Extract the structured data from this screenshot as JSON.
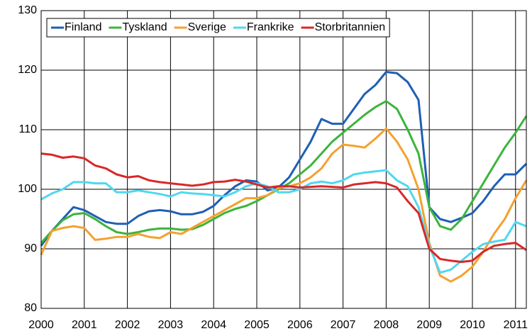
{
  "chart_data": {
    "type": "line",
    "x": [
      2000,
      2000.25,
      2000.5,
      2000.75,
      2001,
      2001.25,
      2001.5,
      2001.75,
      2002,
      2002.25,
      2002.5,
      2002.75,
      2003,
      2003.25,
      2003.5,
      2003.75,
      2004,
      2004.25,
      2004.5,
      2004.75,
      2005,
      2005.25,
      2005.5,
      2005.75,
      2006,
      2006.25,
      2006.5,
      2006.75,
      2007,
      2007.25,
      2007.5,
      2007.75,
      2008,
      2008.25,
      2008.5,
      2008.75,
      2009,
      2009.25,
      2009.5,
      2009.75,
      2010,
      2010.25,
      2010.5,
      2010.75,
      2011,
      2011.25
    ],
    "series": [
      {
        "name": "Finland",
        "color": "#1f5fb4",
        "values": [
          90.5,
          93,
          95,
          97,
          96.5,
          95.5,
          94.5,
          94.2,
          94.2,
          95.5,
          96.3,
          96.5,
          96.3,
          95.8,
          95.8,
          96.2,
          97.2,
          99,
          100.5,
          101.5,
          101.3,
          99.8,
          100.3,
          102,
          105,
          108,
          111.8,
          111,
          111,
          113.5,
          116,
          117.5,
          119.7,
          119.5,
          118,
          115,
          97,
          95,
          94.5,
          95.2,
          96,
          98,
          100.5,
          102.5,
          102.5,
          104.3
        ]
      },
      {
        "name": "Tyskland",
        "color": "#3cb43c",
        "values": [
          91,
          93,
          94.8,
          95.8,
          96,
          95,
          93.8,
          92.8,
          92.5,
          92.8,
          93.2,
          93.4,
          93.4,
          93.2,
          93.3,
          94,
          95,
          96,
          96.7,
          97.2,
          98,
          99,
          100,
          101,
          102.5,
          104,
          106,
          108,
          109.5,
          111,
          112.5,
          113.8,
          114.8,
          113.5,
          110,
          106,
          97,
          93.8,
          93.2,
          95,
          98,
          101,
          104,
          107,
          109.5,
          112.3
        ]
      },
      {
        "name": "Sverige",
        "color": "#f5a030",
        "values": [
          89,
          93,
          93.5,
          93.8,
          93.5,
          91.5,
          91.7,
          92,
          92,
          92.5,
          92,
          91.8,
          92.8,
          92.5,
          93.5,
          94.5,
          95.5,
          96.5,
          97.5,
          98.5,
          98.5,
          99,
          100.2,
          100.5,
          101,
          102,
          103.5,
          106,
          107.5,
          107.3,
          107,
          108.5,
          110.2,
          108,
          105,
          100,
          91,
          85.5,
          84.5,
          85.5,
          87,
          89.5,
          92.5,
          95,
          98.5,
          101.5
        ]
      },
      {
        "name": "Frankrike",
        "color": "#50d8f0",
        "values": [
          98.3,
          99.3,
          100,
          101.2,
          101.2,
          101,
          101,
          99.5,
          99.5,
          99.8,
          99.5,
          99.2,
          98.8,
          99.5,
          99.3,
          99.2,
          99,
          98.8,
          99.5,
          100.5,
          101,
          100.5,
          99.5,
          99.5,
          100,
          101,
          101.3,
          101,
          101.5,
          102.5,
          102.8,
          103,
          103.2,
          101.5,
          100.5,
          97,
          90.5,
          86,
          86.5,
          88,
          89.5,
          90.8,
          91.2,
          91.5,
          94.5,
          93.8
        ]
      },
      {
        "name": "Storbritannien",
        "color": "#d82828",
        "values": [
          106,
          105.8,
          105.3,
          105.5,
          105.2,
          104,
          103.5,
          102.5,
          102,
          102.2,
          101.5,
          101.2,
          101,
          100.8,
          100.6,
          100.8,
          101.2,
          101.3,
          101.6,
          101.3,
          100.8,
          100.3,
          100.5,
          100.5,
          100.3,
          100.4,
          100.5,
          100.4,
          100.3,
          100.8,
          101,
          101.2,
          101,
          100.3,
          98,
          96,
          90,
          88.3,
          88,
          87.8,
          88,
          89.5,
          90.5,
          90.8,
          91,
          89.8
        ]
      }
    ],
    "xlim": [
      2000,
      2011.25
    ],
    "xticks": [
      2000,
      2001,
      2002,
      2003,
      2004,
      2005,
      2006,
      2007,
      2008,
      2009,
      2010,
      2011
    ],
    "ylim": [
      80,
      130
    ],
    "yticks": [
      80,
      90,
      100,
      110,
      120,
      130
    ],
    "grid": true,
    "legend": "upper left"
  }
}
